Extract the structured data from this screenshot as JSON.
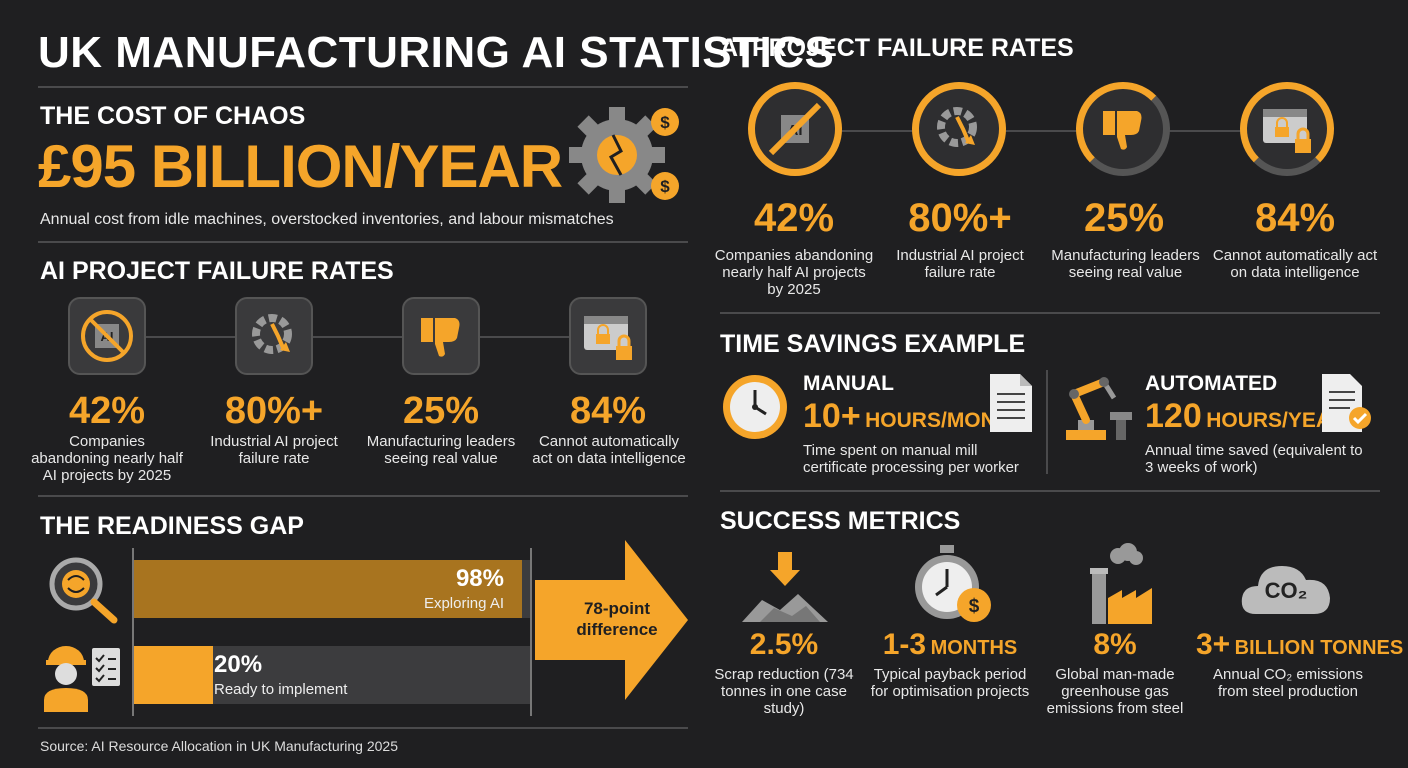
{
  "title": "UK MANUFACTURING AI STATISTICS",
  "cost": {
    "heading": "THE COST OF CHAOS",
    "value": "£95 BILLION/YEAR",
    "desc": "Annual cost from idle machines, overstocked inventories, and labour mismatches"
  },
  "failure_left": {
    "heading": "AI PROJECT FAILURE RATES",
    "items": [
      {
        "value": "42%",
        "label": "Companies abandoning nearly half AI projects by 2025",
        "icon": "ai-chip-crossed-icon"
      },
      {
        "value": "80%+",
        "label": "Industrial AI project failure rate",
        "icon": "broken-gear-icon"
      },
      {
        "value": "25%",
        "label": "Manufacturing leaders seeing real value",
        "icon": "thumbs-down-icon"
      },
      {
        "value": "84%",
        "label": "Cannot automatically act on data intelligence",
        "icon": "locked-window-icon"
      }
    ]
  },
  "failure_right": {
    "heading": "AI PROJECT FAILURE RATES",
    "items": [
      {
        "value": "42%",
        "label": "Companies abandoning nearly half AI projects by 2025"
      },
      {
        "value": "80%+",
        "label": "Industrial AI project failure rate"
      },
      {
        "value": "25%",
        "label": "Manufacturing leaders seeing real value"
      },
      {
        "value": "84%",
        "label": "Cannot automatically act on data intelligence"
      }
    ]
  },
  "readiness": {
    "heading": "THE READINESS GAP",
    "bar1": {
      "value": "98%",
      "label": "Exploring AI",
      "fraction": 0.98
    },
    "bar2": {
      "value": "20%",
      "label": "Ready to implement",
      "fraction": 0.2
    },
    "arrow_text": "78-point difference",
    "colors": {
      "bar1": "#a8741f",
      "bar2": "#f5a52a"
    }
  },
  "time_savings": {
    "heading": "TIME SAVINGS EXAMPLE",
    "manual": {
      "label": "MANUAL",
      "value": "10+",
      "unit": "HOURS/MONTH",
      "desc": "Time spent on manual mill certificate processing per worker"
    },
    "automated": {
      "label": "AUTOMATED",
      "value": "120",
      "unit": "HOURS/YEAR",
      "desc": "Annual time saved (equivalent to 3 weeks of work)"
    }
  },
  "success": {
    "heading": "SUCCESS METRICS",
    "items": [
      {
        "value": "2.5%",
        "unit": "",
        "label": "Scrap reduction (734 tonnes in one case study)"
      },
      {
        "value": "1-3",
        "unit": "MONTHS",
        "label": "Typical payback period for optimisation projects"
      },
      {
        "value": "8%",
        "unit": "",
        "label": "Global man-made greenhouse gas emissions from steel"
      },
      {
        "value": "3+",
        "unit": "BILLION TONNES",
        "label": "Annual CO₂ emissions from steel production"
      }
    ],
    "co2_text": "CO₂"
  },
  "source": "Source: AI Resource Allocation in UK Manufacturing 2025",
  "accent": "#f5a52a"
}
